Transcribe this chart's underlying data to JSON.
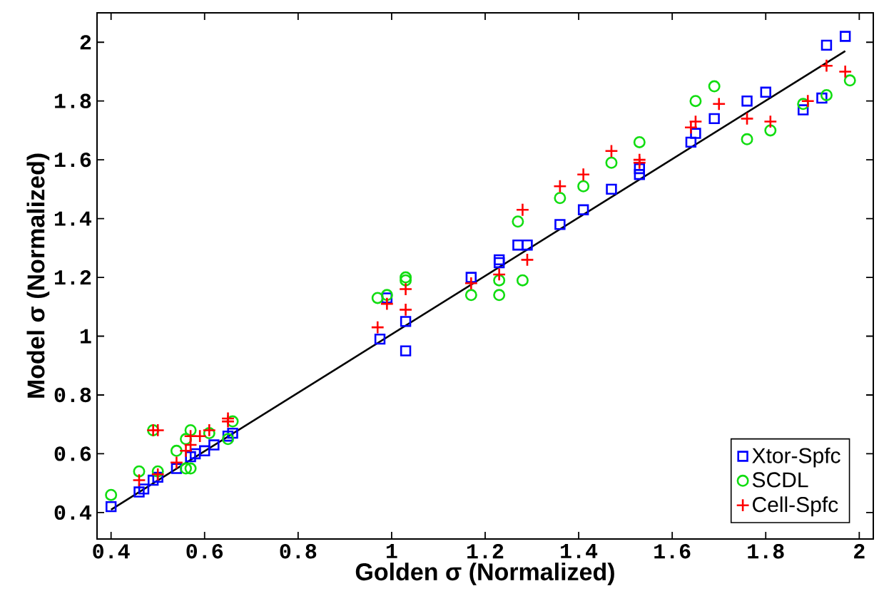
{
  "chart_data": {
    "type": "scatter",
    "xlabel": "Golden σ (Normalized)",
    "ylabel": "Model σ (Normalized)",
    "xlim": [
      0.37,
      2.03
    ],
    "ylim": [
      0.31,
      2.1
    ],
    "xticks": [
      0.4,
      0.6,
      0.8,
      1,
      1.2,
      1.4,
      1.6,
      1.8,
      2
    ],
    "yticks": [
      0.4,
      0.6,
      0.8,
      1,
      1.2,
      1.4,
      1.6,
      1.8,
      2
    ],
    "grid": false,
    "legend": "bottom right",
    "series": [
      {
        "name": "Xtor-Spfc",
        "color": "#0000ff",
        "marker": "square",
        "x": [
          0.4,
          0.46,
          0.47,
          0.49,
          0.5,
          0.54,
          0.55,
          0.56,
          0.57,
          0.58,
          0.6,
          0.62,
          0.65,
          0.66,
          0.975,
          0.99,
          1.03,
          1.03,
          1.17,
          1.23,
          1.23,
          1.27,
          1.29,
          1.36,
          1.41,
          1.47,
          1.53,
          1.53,
          1.64,
          1.65,
          1.69,
          1.76,
          1.8,
          1.88,
          1.92,
          1.93,
          1.97
        ],
        "values": [
          0.42,
          0.47,
          0.48,
          0.51,
          0.52,
          0.55,
          null,
          null,
          0.59,
          0.6,
          0.61,
          0.63,
          0.66,
          0.67,
          0.99,
          1.13,
          1.05,
          0.95,
          1.2,
          1.25,
          1.26,
          1.31,
          1.31,
          1.38,
          1.43,
          1.5,
          1.57,
          1.55,
          1.66,
          1.69,
          1.74,
          1.8,
          1.83,
          1.77,
          1.81,
          1.99,
          2.02
        ]
      },
      {
        "name": "SCDL",
        "color": "#11dd11",
        "marker": "circle",
        "x": [
          0.4,
          0.46,
          0.49,
          0.5,
          0.54,
          0.56,
          0.57,
          0.57,
          0.56,
          0.61,
          0.65,
          0.66,
          0.97,
          0.99,
          1.03,
          1.03,
          1.17,
          1.23,
          1.23,
          1.28,
          1.27,
          1.36,
          1.41,
          1.47,
          1.53,
          1.65,
          1.69,
          1.76,
          1.81,
          1.88,
          1.93,
          1.98
        ],
        "values": [
          0.46,
          0.54,
          0.68,
          0.54,
          0.61,
          0.55,
          0.55,
          0.68,
          0.65,
          0.67,
          0.65,
          0.71,
          1.13,
          1.14,
          1.19,
          1.2,
          1.14,
          1.14,
          1.19,
          1.19,
          1.39,
          1.47,
          1.51,
          1.59,
          1.66,
          1.8,
          1.85,
          1.67,
          1.7,
          1.79,
          1.82,
          1.87
        ]
      },
      {
        "name": "Cell-Spfc",
        "color": "#ff0000",
        "marker": "cross",
        "x": [
          0.46,
          0.49,
          0.5,
          0.5,
          0.54,
          0.56,
          0.57,
          0.57,
          0.59,
          0.61,
          0.65,
          0.65,
          0.97,
          0.99,
          1.03,
          1.03,
          1.17,
          1.23,
          1.29,
          1.28,
          1.36,
          1.41,
          1.47,
          1.53,
          1.53,
          1.64,
          1.65,
          1.7,
          1.76,
          1.81,
          1.89,
          1.93,
          1.97
        ],
        "values": [
          0.51,
          0.68,
          0.68,
          0.53,
          0.57,
          0.61,
          0.63,
          0.66,
          0.66,
          0.68,
          0.72,
          0.71,
          1.03,
          1.11,
          1.09,
          1.16,
          1.18,
          1.21,
          1.26,
          1.43,
          1.51,
          1.55,
          1.63,
          1.6,
          1.59,
          1.71,
          1.73,
          1.79,
          1.74,
          1.73,
          1.8,
          1.92,
          1.9
        ]
      },
      {
        "type": "line",
        "color": "#000000",
        "marker": "none",
        "line_style": "solid",
        "x": [
          0.4,
          1.97
        ],
        "values": [
          0.41,
          1.97
        ]
      }
    ]
  }
}
